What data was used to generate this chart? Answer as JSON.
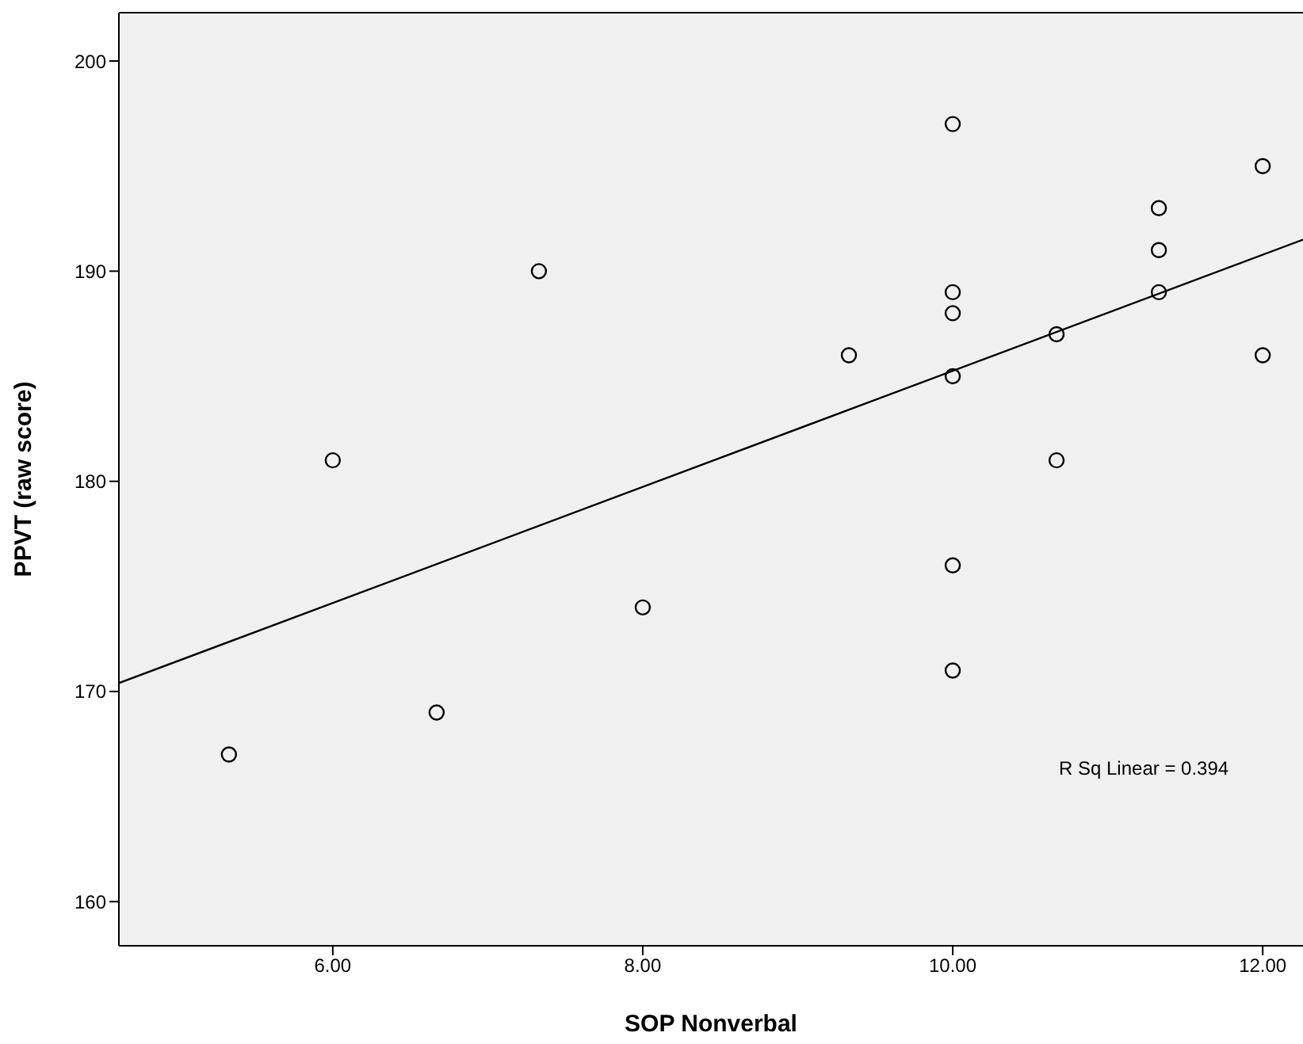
{
  "chart_data": {
    "type": "scatter",
    "xlabel": "SOP Nonverbal",
    "ylabel": "PPVT (raw score)",
    "xlim": [
      4.62,
      12.26
    ],
    "ylim": [
      157.9,
      202.3
    ],
    "xticks": [
      {
        "value": 6,
        "label": "6.00"
      },
      {
        "value": 8,
        "label": "8.00"
      },
      {
        "value": 10,
        "label": "10.00"
      },
      {
        "value": 12,
        "label": "12.00"
      }
    ],
    "yticks": [
      160,
      170,
      180,
      190,
      200
    ],
    "marker": "circle",
    "grid": false,
    "annotations": [
      "R Sq Linear = 0.394"
    ],
    "series": [
      {
        "type": "scatter",
        "color": "#000000",
        "x": [
          5.33,
          6,
          6.67,
          7.33,
          8,
          9.33,
          10,
          10,
          10,
          10,
          10,
          10,
          10.67,
          10.67,
          11.33,
          11.33,
          11.33,
          12,
          12
        ],
        "values": [
          167,
          181,
          169,
          190,
          174,
          186,
          197,
          189,
          188,
          185,
          176,
          171,
          187,
          181,
          193,
          191,
          189,
          195,
          186
        ]
      },
      {
        "type": "line",
        "color": "#000000",
        "marker": "none",
        "x": [
          4.62,
          12.26
        ],
        "values": [
          170.4,
          191.5
        ]
      }
    ]
  }
}
